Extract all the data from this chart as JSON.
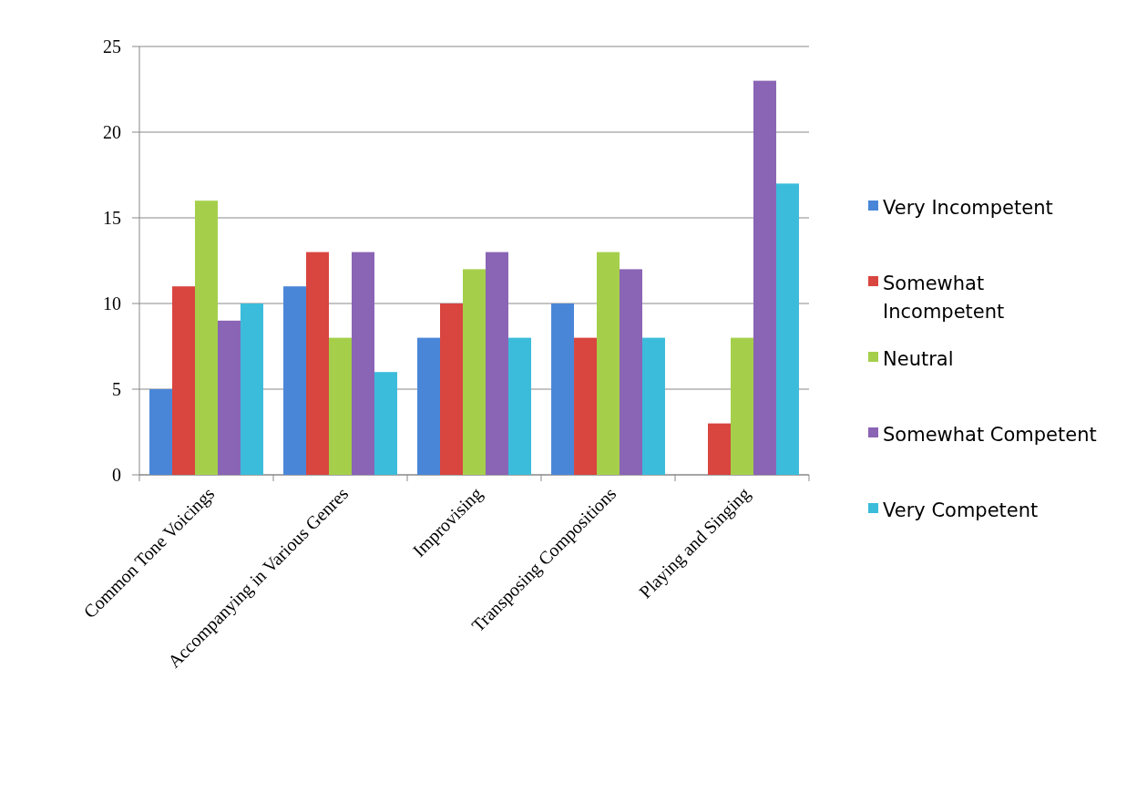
{
  "chart_data": {
    "type": "bar",
    "categories": [
      "Common Tone Voicings",
      "Accompanying in Various Genres",
      "Improvising",
      "Transposing Compositions",
      "Playing and Singing"
    ],
    "series": [
      {
        "name": "Very Incompetent",
        "color": "#4a86d8",
        "values": [
          5,
          11,
          8,
          10,
          0
        ]
      },
      {
        "name": "Somewhat Incompetent",
        "color": "#d9453f",
        "values": [
          11,
          13,
          10,
          8,
          3
        ]
      },
      {
        "name": "Neutral",
        "color": "#a5cf4a",
        "values": [
          16,
          8,
          12,
          13,
          8
        ]
      },
      {
        "name": "Somewhat Competent",
        "color": "#8a64b5",
        "values": [
          9,
          13,
          13,
          12,
          23
        ]
      },
      {
        "name": "Very Competent",
        "color": "#3cbcdb",
        "values": [
          10,
          6,
          8,
          8,
          17
        ]
      }
    ],
    "ylim": [
      0,
      25
    ],
    "yticks": [
      0,
      5,
      10,
      15,
      20,
      25
    ],
    "grid": "y",
    "legend": "right"
  }
}
